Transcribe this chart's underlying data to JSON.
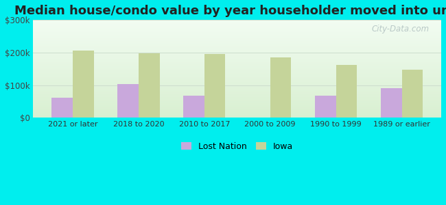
{
  "title": "Median house/condo value by year householder moved into unit",
  "categories": [
    "2021 or later",
    "2018 to 2020",
    "2010 to 2017",
    "2000 to 2009",
    "1990 to 1999",
    "1989 or earlier"
  ],
  "lost_nation_values": [
    62000,
    103000,
    68000,
    0,
    67000,
    90000
  ],
  "iowa_values": [
    207000,
    198000,
    196000,
    185000,
    163000,
    148000
  ],
  "lost_nation_color": "#c9a8dc",
  "iowa_color": "#c5d49a",
  "background_color": "#00eeee",
  "plot_bg_color_topleft": "#d8f0d8",
  "plot_bg_color_topright": "#f0f8f0",
  "plot_bg_color_bottom": "#e8f4e0",
  "ytick_labels": [
    "$0",
    "$100k",
    "$200k",
    "$300k"
  ],
  "ytick_values": [
    0,
    100000,
    200000,
    300000
  ],
  "ylim": [
    0,
    300000
  ],
  "legend_lost_nation": "Lost Nation",
  "legend_iowa": "Iowa",
  "bar_width": 0.32,
  "title_fontsize": 13,
  "watermark_text": "City-Data.com"
}
